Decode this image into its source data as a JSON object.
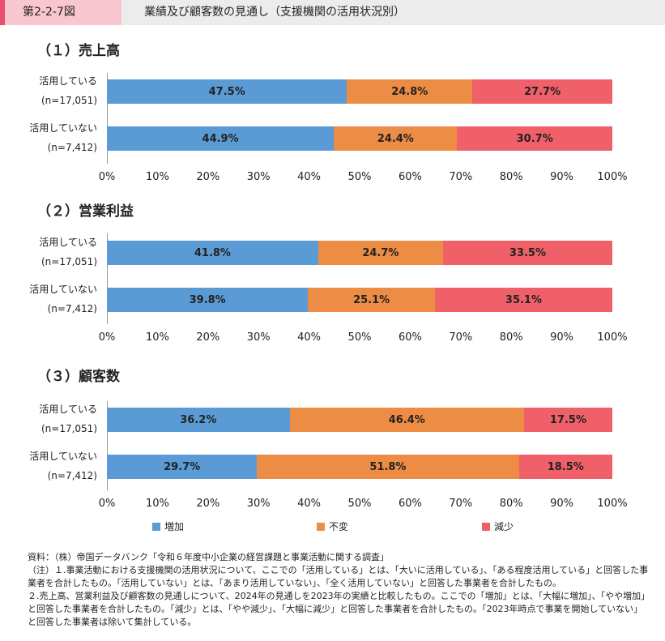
{
  "header": {
    "figure_number": "第2-2-7図",
    "figure_title": "業績及び顧客数の見通し（支援機関の活用状況別）"
  },
  "colors": {
    "increase": "#5b9bd5",
    "unchanged": "#ed8c44",
    "decrease": "#f06068"
  },
  "legend": {
    "increase": "増加",
    "unchanged": "不変",
    "decrease": "減少"
  },
  "chart_data": [
    {
      "type": "bar",
      "orientation": "horizontal-stacked-100",
      "title": "（１）売上高",
      "categories": [
        {
          "label": "活用している",
          "n": "(n=17,051)"
        },
        {
          "label": "活用していない",
          "n": "(n=7,412)"
        }
      ],
      "series": [
        {
          "name": "増加",
          "values": [
            47.5,
            44.9
          ]
        },
        {
          "name": "不変",
          "values": [
            24.8,
            24.4
          ]
        },
        {
          "name": "減少",
          "values": [
            27.7,
            30.7
          ]
        }
      ],
      "value_labels": [
        [
          "47.5%",
          "24.8%",
          "27.7%"
        ],
        [
          "44.9%",
          "24.4%",
          "30.7%"
        ]
      ],
      "xlim": [
        0,
        100
      ],
      "xticks": [
        "0%",
        "10%",
        "20%",
        "30%",
        "40%",
        "50%",
        "60%",
        "70%",
        "80%",
        "90%",
        "100%"
      ]
    },
    {
      "type": "bar",
      "orientation": "horizontal-stacked-100",
      "title": "（２）営業利益",
      "categories": [
        {
          "label": "活用している",
          "n": "(n=17,051)"
        },
        {
          "label": "活用していない",
          "n": "(n=7,412)"
        }
      ],
      "series": [
        {
          "name": "増加",
          "values": [
            41.8,
            39.8
          ]
        },
        {
          "name": "不変",
          "values": [
            24.7,
            25.1
          ]
        },
        {
          "name": "減少",
          "values": [
            33.5,
            35.1
          ]
        }
      ],
      "value_labels": [
        [
          "41.8%",
          "24.7%",
          "33.5%"
        ],
        [
          "39.8%",
          "25.1%",
          "35.1%"
        ]
      ],
      "xlim": [
        0,
        100
      ],
      "xticks": [
        "0%",
        "10%",
        "20%",
        "30%",
        "40%",
        "50%",
        "60%",
        "70%",
        "80%",
        "90%",
        "100%"
      ]
    },
    {
      "type": "bar",
      "orientation": "horizontal-stacked-100",
      "title": "（３）顧客数",
      "categories": [
        {
          "label": "活用している",
          "n": "(n=17,051)"
        },
        {
          "label": "活用していない",
          "n": "(n=7,412)"
        }
      ],
      "series": [
        {
          "name": "増加",
          "values": [
            36.2,
            29.7
          ]
        },
        {
          "name": "不変",
          "values": [
            46.4,
            51.8
          ]
        },
        {
          "name": "減少",
          "values": [
            17.5,
            18.5
          ]
        }
      ],
      "value_labels": [
        [
          "36.2%",
          "46.4%",
          "17.5%"
        ],
        [
          "29.7%",
          "51.8%",
          "18.5%"
        ]
      ],
      "xlim": [
        0,
        100
      ],
      "xticks": [
        "0%",
        "10%",
        "20%",
        "30%",
        "40%",
        "50%",
        "60%",
        "70%",
        "80%",
        "90%",
        "100%"
      ]
    }
  ],
  "notes": {
    "source": "資料：（株）帝国データバンク「令和６年度中小企業の経営課題と事業活動に関する調査」",
    "note1": "（注）１.事業活動における支援機関の活用状況について、ここでの「活用している」とは、「大いに活用している」、「ある程度活用している」と回答した事業者を合計したもの。「活用していない」とは、「あまり活用していない」、「全く活用していない」と回答した事業者を合計したもの。",
    "note2": "２.売上高、営業利益及び顧客数の見通しについて、2024年の見通しを2023年の実績と比較したもの。ここでの「増加」とは、「大幅に増加」、「やや増加」と回答した事業者を合計したもの。「減少」とは、「やや減少」、「大幅に減少」と回答した事業者を合計したもの。「2023年時点で事業を開始していない」と回答した事業者は除いて集計している。"
  }
}
